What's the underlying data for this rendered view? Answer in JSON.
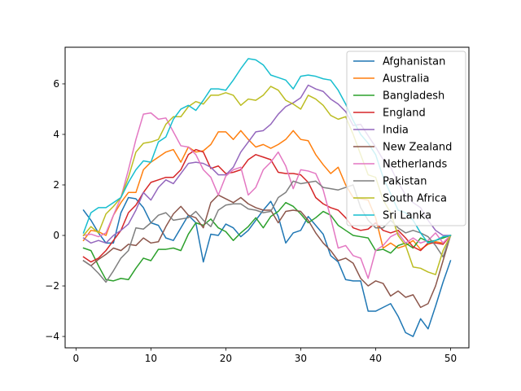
{
  "chart_data": {
    "type": "line",
    "title": "",
    "xlabel": "",
    "ylabel": "",
    "xlim": [
      -1.45,
      52.45
    ],
    "ylim": [
      -4.45,
      7.45
    ],
    "xticks": [
      0,
      10,
      20,
      30,
      40,
      50
    ],
    "yticks": [
      -4,
      -2,
      0,
      2,
      4,
      6
    ],
    "xtick_labels": [
      "0",
      "10",
      "20",
      "30",
      "40",
      "50"
    ],
    "ytick_labels": [
      "−4",
      "−2",
      "0",
      "2",
      "4",
      "6"
    ],
    "grid": false,
    "legend_position": "top-right",
    "series": [
      {
        "name": "Afghanistan",
        "color": "#1f77b4",
        "values": [
          1.0,
          0.6,
          0.1,
          -0.3,
          -0.3,
          0.9,
          1.5,
          1.45,
          1.1,
          0.5,
          0.4,
          -0.1,
          -0.2,
          0.3,
          0.8,
          0.5,
          -1.05,
          0.05,
          0.0,
          0.45,
          0.3,
          -0.05,
          0.2,
          0.6,
          1.0,
          1.35,
          0.75,
          -0.3,
          0.1,
          0.2,
          0.75,
          0.4,
          0.05,
          -0.8,
          -1.05,
          -1.75,
          -1.8,
          -1.8,
          -3.0,
          -3.0,
          -2.85,
          -2.7,
          -3.2,
          -3.85,
          -4.0,
          -3.3,
          -3.7,
          -2.8,
          -1.85,
          -1.0
        ]
      },
      {
        "name": "Australia",
        "color": "#ff7f0e",
        "values": [
          -0.2,
          0.2,
          0.15,
          0.0,
          0.8,
          1.3,
          1.7,
          1.7,
          2.6,
          2.9,
          3.1,
          3.3,
          3.4,
          2.9,
          3.5,
          3.3,
          3.35,
          3.6,
          4.1,
          4.1,
          3.8,
          4.15,
          3.8,
          3.5,
          3.6,
          3.45,
          3.6,
          3.8,
          4.15,
          3.8,
          3.75,
          3.2,
          2.8,
          2.45,
          2.7,
          2.0,
          1.5,
          1.45,
          1.4,
          0.7,
          -0.5,
          -0.3,
          -0.5,
          -0.4,
          -0.2,
          -0.55,
          -0.35,
          -0.25,
          -0.3,
          0.0
        ]
      },
      {
        "name": "Bangladesh",
        "color": "#2ca02c",
        "values": [
          -0.5,
          -0.6,
          -1.2,
          -1.75,
          -1.8,
          -1.7,
          -1.75,
          -1.3,
          -0.9,
          -1.0,
          -0.55,
          -0.55,
          -0.5,
          -0.6,
          0.05,
          0.5,
          0.4,
          0.65,
          0.3,
          0.15,
          -0.2,
          0.1,
          0.35,
          0.7,
          0.3,
          0.75,
          0.95,
          1.3,
          1.15,
          0.85,
          0.5,
          0.7,
          0.95,
          0.8,
          0.4,
          0.2,
          0.0,
          -0.05,
          -0.1,
          -0.6,
          -0.55,
          -0.7,
          -0.4,
          -0.3,
          -0.5,
          -0.1,
          -0.25,
          -0.2,
          -0.1,
          0.0
        ]
      },
      {
        "name": "England",
        "color": "#d62728",
        "values": [
          -0.85,
          -1.05,
          -0.9,
          -0.6,
          -0.2,
          0.2,
          0.9,
          1.2,
          1.7,
          2.1,
          2.2,
          2.3,
          2.3,
          2.6,
          3.2,
          3.4,
          3.3,
          2.65,
          2.75,
          2.45,
          2.5,
          2.6,
          3.0,
          3.2,
          3.1,
          3.0,
          2.5,
          2.45,
          2.45,
          2.4,
          2.1,
          1.5,
          1.25,
          1.1,
          1.0,
          0.7,
          0.3,
          0.2,
          0.25,
          0.5,
          0.2,
          0.1,
          0.2,
          -0.1,
          -0.45,
          -0.6,
          -0.3,
          -0.3,
          -0.35,
          0.0
        ]
      },
      {
        "name": "India",
        "color": "#9467bd",
        "values": [
          -0.1,
          -0.3,
          -0.2,
          -0.3,
          0.0,
          0.2,
          0.45,
          1.0,
          1.7,
          1.4,
          1.9,
          2.2,
          2.05,
          2.45,
          2.85,
          2.9,
          2.85,
          2.7,
          2.4,
          2.4,
          2.7,
          3.3,
          3.7,
          4.1,
          4.15,
          4.4,
          4.8,
          5.1,
          5.25,
          5.45,
          5.95,
          5.8,
          5.7,
          5.4,
          5.2,
          4.9,
          4.35,
          4.4,
          3.95,
          3.5,
          3.0,
          2.7,
          2.1,
          1.6,
          1.3,
          1.1,
          0.6,
          0.2,
          0.0,
          0.0
        ]
      },
      {
        "name": "New Zealand",
        "color": "#8c564b",
        "values": [
          -1.0,
          -1.2,
          -0.95,
          -0.75,
          -0.5,
          -0.6,
          -0.35,
          -0.4,
          -0.1,
          -0.3,
          -0.25,
          0.35,
          0.85,
          1.15,
          0.8,
          0.7,
          0.3,
          1.3,
          1.6,
          1.45,
          1.3,
          1.5,
          1.25,
          1.1,
          1.0,
          1.0,
          0.5,
          0.95,
          1.0,
          0.95,
          0.6,
          0.1,
          -0.3,
          -0.6,
          -1.0,
          -0.9,
          -1.1,
          -1.7,
          -2.0,
          -1.8,
          -1.9,
          -2.4,
          -2.2,
          -2.45,
          -2.35,
          -2.85,
          -2.7,
          -2.0,
          -1.0,
          0.0
        ]
      },
      {
        "name": "Netherlands",
        "color": "#e377c2",
        "values": [
          0.0,
          0.05,
          -0.05,
          0.1,
          0.8,
          1.5,
          2.6,
          3.8,
          4.8,
          4.85,
          4.6,
          4.65,
          4.1,
          3.55,
          3.5,
          3.2,
          2.6,
          2.3,
          1.6,
          2.35,
          2.6,
          2.7,
          1.6,
          1.9,
          2.6,
          2.9,
          3.3,
          2.75,
          1.85,
          2.6,
          2.55,
          2.45,
          1.8,
          0.7,
          -0.5,
          -0.4,
          -0.8,
          -0.9,
          -1.7,
          -0.6,
          -0.4,
          -0.05,
          0.1,
          -0.3,
          -0.1,
          -0.3,
          -0.2,
          0.1,
          -0.3,
          0.0
        ]
      },
      {
        "name": "Pakistan",
        "color": "#7f7f7f",
        "values": [
          -1.0,
          -1.2,
          -1.5,
          -1.85,
          -1.4,
          -0.9,
          -0.6,
          0.3,
          0.25,
          0.5,
          0.8,
          0.9,
          0.6,
          0.65,
          0.7,
          0.95,
          0.6,
          0.35,
          1.0,
          1.2,
          1.25,
          1.25,
          1.05,
          1.0,
          0.9,
          0.95,
          1.5,
          1.7,
          2.15,
          2.05,
          2.1,
          2.15,
          1.9,
          1.85,
          1.8,
          1.9,
          2.0,
          1.1,
          0.6,
          0.3,
          0.3,
          0.6,
          0.3,
          0.1,
          0.2,
          0.1,
          -0.05,
          -0.4,
          -0.85,
          0.0
        ]
      },
      {
        "name": "South Africa",
        "color": "#bcbd22",
        "values": [
          0.0,
          0.35,
          0.1,
          0.85,
          1.15,
          1.5,
          2.3,
          3.3,
          3.65,
          3.7,
          3.8,
          4.4,
          4.7,
          4.7,
          5.1,
          5.3,
          5.2,
          5.55,
          5.55,
          5.65,
          5.55,
          5.15,
          5.4,
          5.35,
          5.55,
          5.9,
          5.75,
          5.35,
          5.2,
          5.0,
          5.55,
          5.4,
          5.15,
          4.75,
          4.6,
          4.7,
          4.0,
          3.2,
          2.4,
          2.3,
          1.4,
          0.9,
          0.0,
          -0.4,
          -1.25,
          -1.3,
          -1.45,
          -1.55,
          -0.6,
          0.0
        ]
      },
      {
        "name": "Sri Lanka",
        "color": "#17becf",
        "values": [
          0.1,
          0.9,
          1.1,
          1.1,
          1.3,
          1.5,
          2.1,
          2.6,
          2.95,
          2.9,
          3.7,
          3.9,
          4.6,
          5.0,
          5.15,
          4.95,
          5.35,
          5.8,
          5.8,
          5.75,
          6.15,
          6.6,
          7.0,
          6.95,
          6.75,
          6.35,
          6.25,
          6.15,
          5.8,
          6.3,
          6.35,
          6.3,
          6.2,
          6.15,
          5.75,
          5.2,
          4.55,
          4.0,
          3.65,
          3.2,
          2.3,
          1.65,
          1.0,
          0.9,
          0.6,
          0.1,
          -0.3,
          -0.2,
          -0.05,
          0.0
        ]
      }
    ]
  }
}
